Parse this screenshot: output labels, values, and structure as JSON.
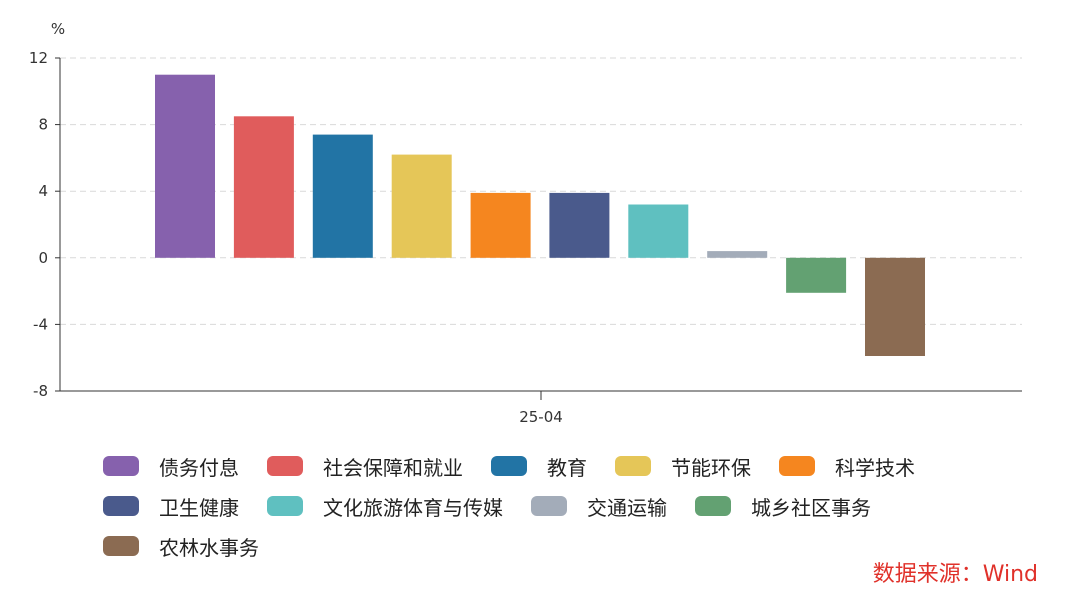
{
  "chart_data": {
    "type": "bar",
    "ylabel": "%",
    "ylim": [
      -8,
      12
    ],
    "yticks": [
      12,
      8,
      4,
      0,
      -4,
      -8
    ],
    "xcategory": "25-04",
    "grid": true,
    "legend_position": "bottom",
    "series": [
      {
        "name": "债务付息",
        "value": 11.0,
        "color": "#8661ad"
      },
      {
        "name": "社会保障和就业",
        "value": 8.5,
        "color": "#e05c5c"
      },
      {
        "name": "教育",
        "value": 7.4,
        "color": "#2274a5"
      },
      {
        "name": "节能环保",
        "value": 6.2,
        "color": "#e5c658"
      },
      {
        "name": "科学技术",
        "value": 3.9,
        "color": "#f5861f"
      },
      {
        "name": "卫生健康",
        "value": 3.9,
        "color": "#4a5a8c"
      },
      {
        "name": "文化旅游体育与传媒",
        "value": 3.2,
        "color": "#5fc0c0"
      },
      {
        "name": "交通运输",
        "value": 0.4,
        "color": "#a3acb9"
      },
      {
        "name": "城乡社区事务",
        "value": -2.1,
        "color": "#63a172"
      },
      {
        "name": "农林水事务",
        "value": -5.9,
        "color": "#8b6b52"
      }
    ]
  },
  "source": "数据来源：Wind"
}
